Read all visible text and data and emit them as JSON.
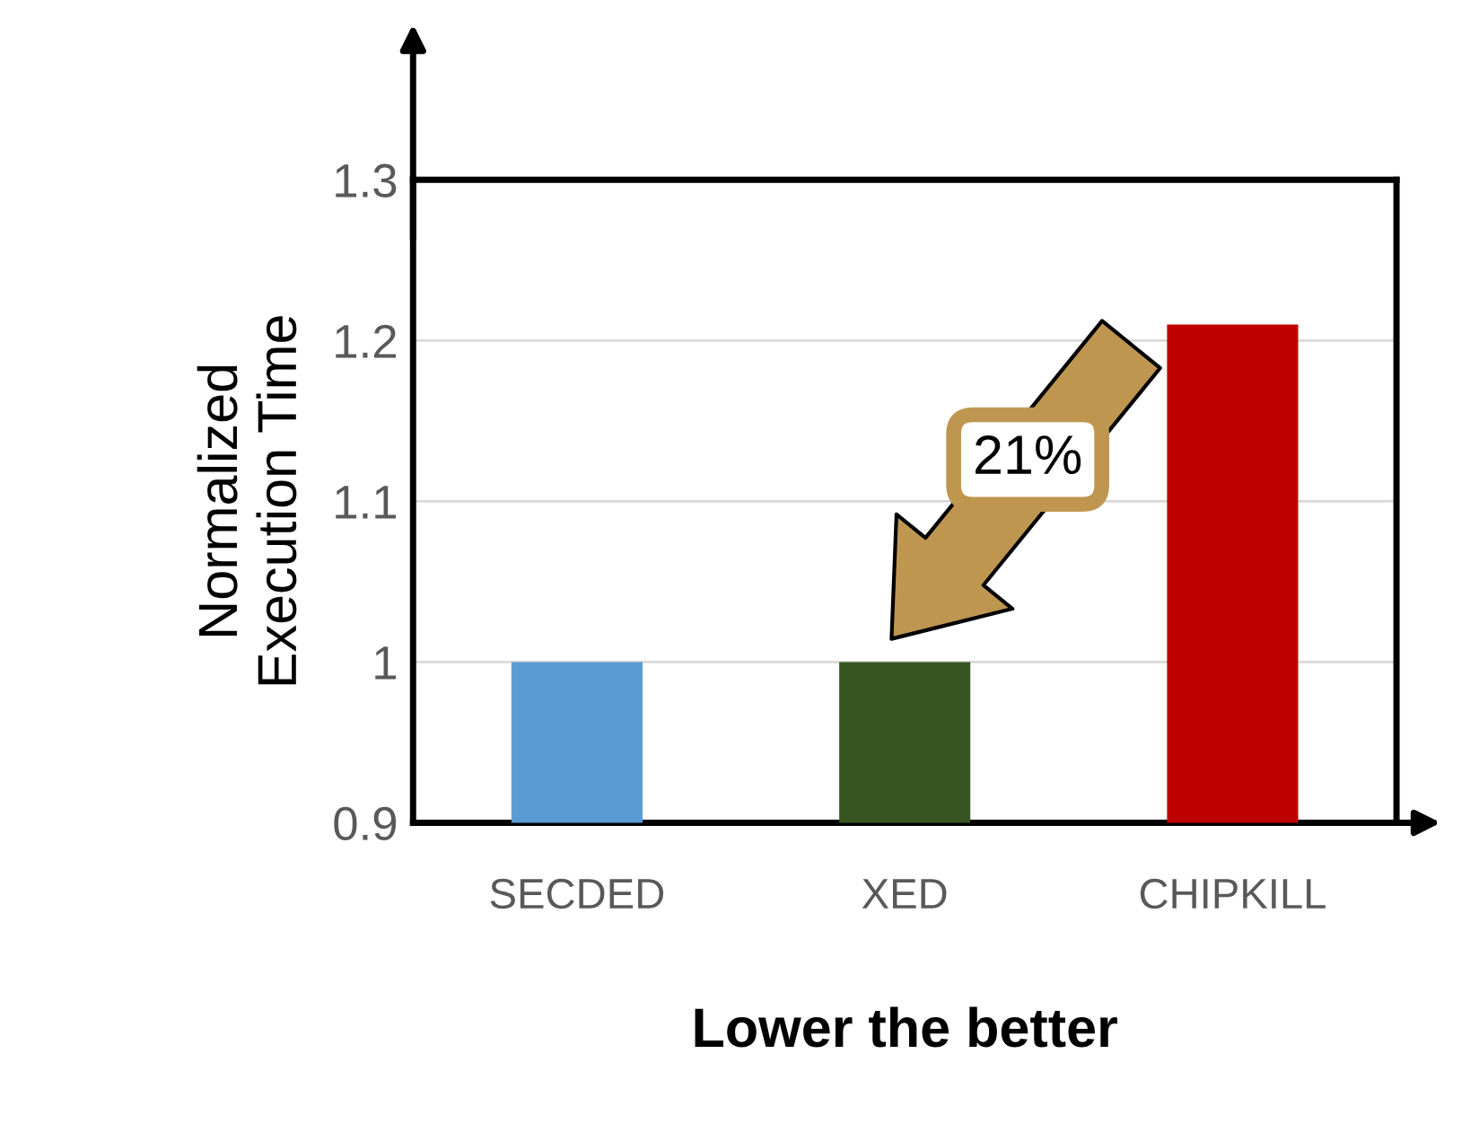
{
  "chart_data": {
    "type": "bar",
    "categories": [
      "SECDED",
      "XED",
      "CHIPKILL"
    ],
    "values": [
      1.0,
      1.0,
      1.21
    ],
    "colors": [
      "#5b9bd5",
      "#375623",
      "#c00000"
    ],
    "ylabel": "Normalized\nExecution Time",
    "xlabel": "Lower the better",
    "ylim": [
      0.9,
      1.3
    ],
    "yticks": [
      0.9,
      1,
      1.1,
      1.2,
      1.3
    ],
    "grid": "y",
    "annotations": [
      "21%"
    ]
  }
}
